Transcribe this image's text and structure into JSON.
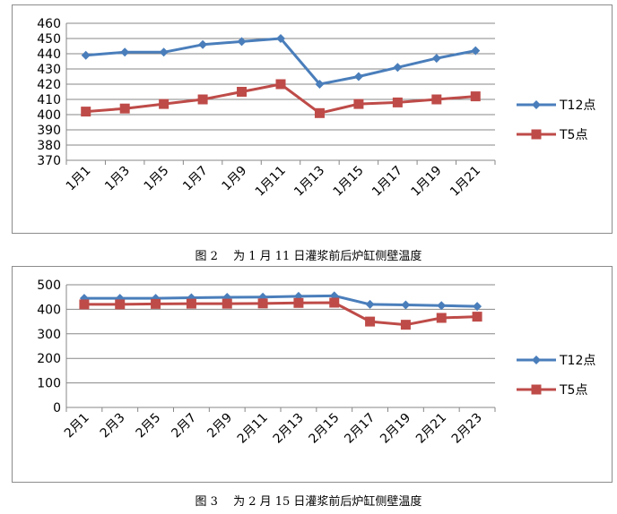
{
  "chart_data": [
    {
      "type": "line",
      "categories": [
        "1月1",
        "1月3",
        "1月5",
        "1月7",
        "1月9",
        "1月11",
        "1月13",
        "1月15",
        "1月17",
        "1月19",
        "1月21"
      ],
      "series": [
        {
          "name": "T12点",
          "color": "#4A7EBB",
          "marker": "diamond",
          "values": [
            439,
            441,
            441,
            446,
            448,
            450,
            420,
            425,
            431,
            437,
            442
          ]
        },
        {
          "name": "T5点",
          "color": "#BE4B48",
          "marker": "square",
          "values": [
            402,
            404,
            407,
            410,
            415,
            420,
            401,
            407,
            408,
            410,
            412
          ]
        }
      ],
      "ylim": [
        370,
        460
      ],
      "yticks": [
        370,
        380,
        390,
        400,
        410,
        420,
        430,
        440,
        450,
        460
      ],
      "grid": true,
      "legend": "right",
      "caption": "图 2　 为 1 月 11 日灌浆前后炉缸侧壁温度"
    },
    {
      "type": "line",
      "categories": [
        "2月1",
        "2月3",
        "2月5",
        "2月7",
        "2月9",
        "2月11",
        "2月13",
        "2月15",
        "2月17",
        "2月19",
        "2月21",
        "2月23"
      ],
      "series": [
        {
          "name": "T12点",
          "color": "#4A7EBB",
          "marker": "diamond",
          "values": [
            445,
            445,
            445,
            447,
            449,
            450,
            453,
            455,
            420,
            418,
            415,
            412
          ]
        },
        {
          "name": "T5点",
          "color": "#BE4B48",
          "marker": "square",
          "values": [
            420,
            420,
            422,
            423,
            423,
            424,
            426,
            427,
            350,
            337,
            365,
            370
          ]
        }
      ],
      "ylim": [
        0,
        500
      ],
      "yticks": [
        0,
        100,
        200,
        300,
        400,
        500
      ],
      "grid": true,
      "legend": "right",
      "caption": "图 3　 为 2 月 15 日灌浆前后炉缸侧壁温度"
    }
  ]
}
